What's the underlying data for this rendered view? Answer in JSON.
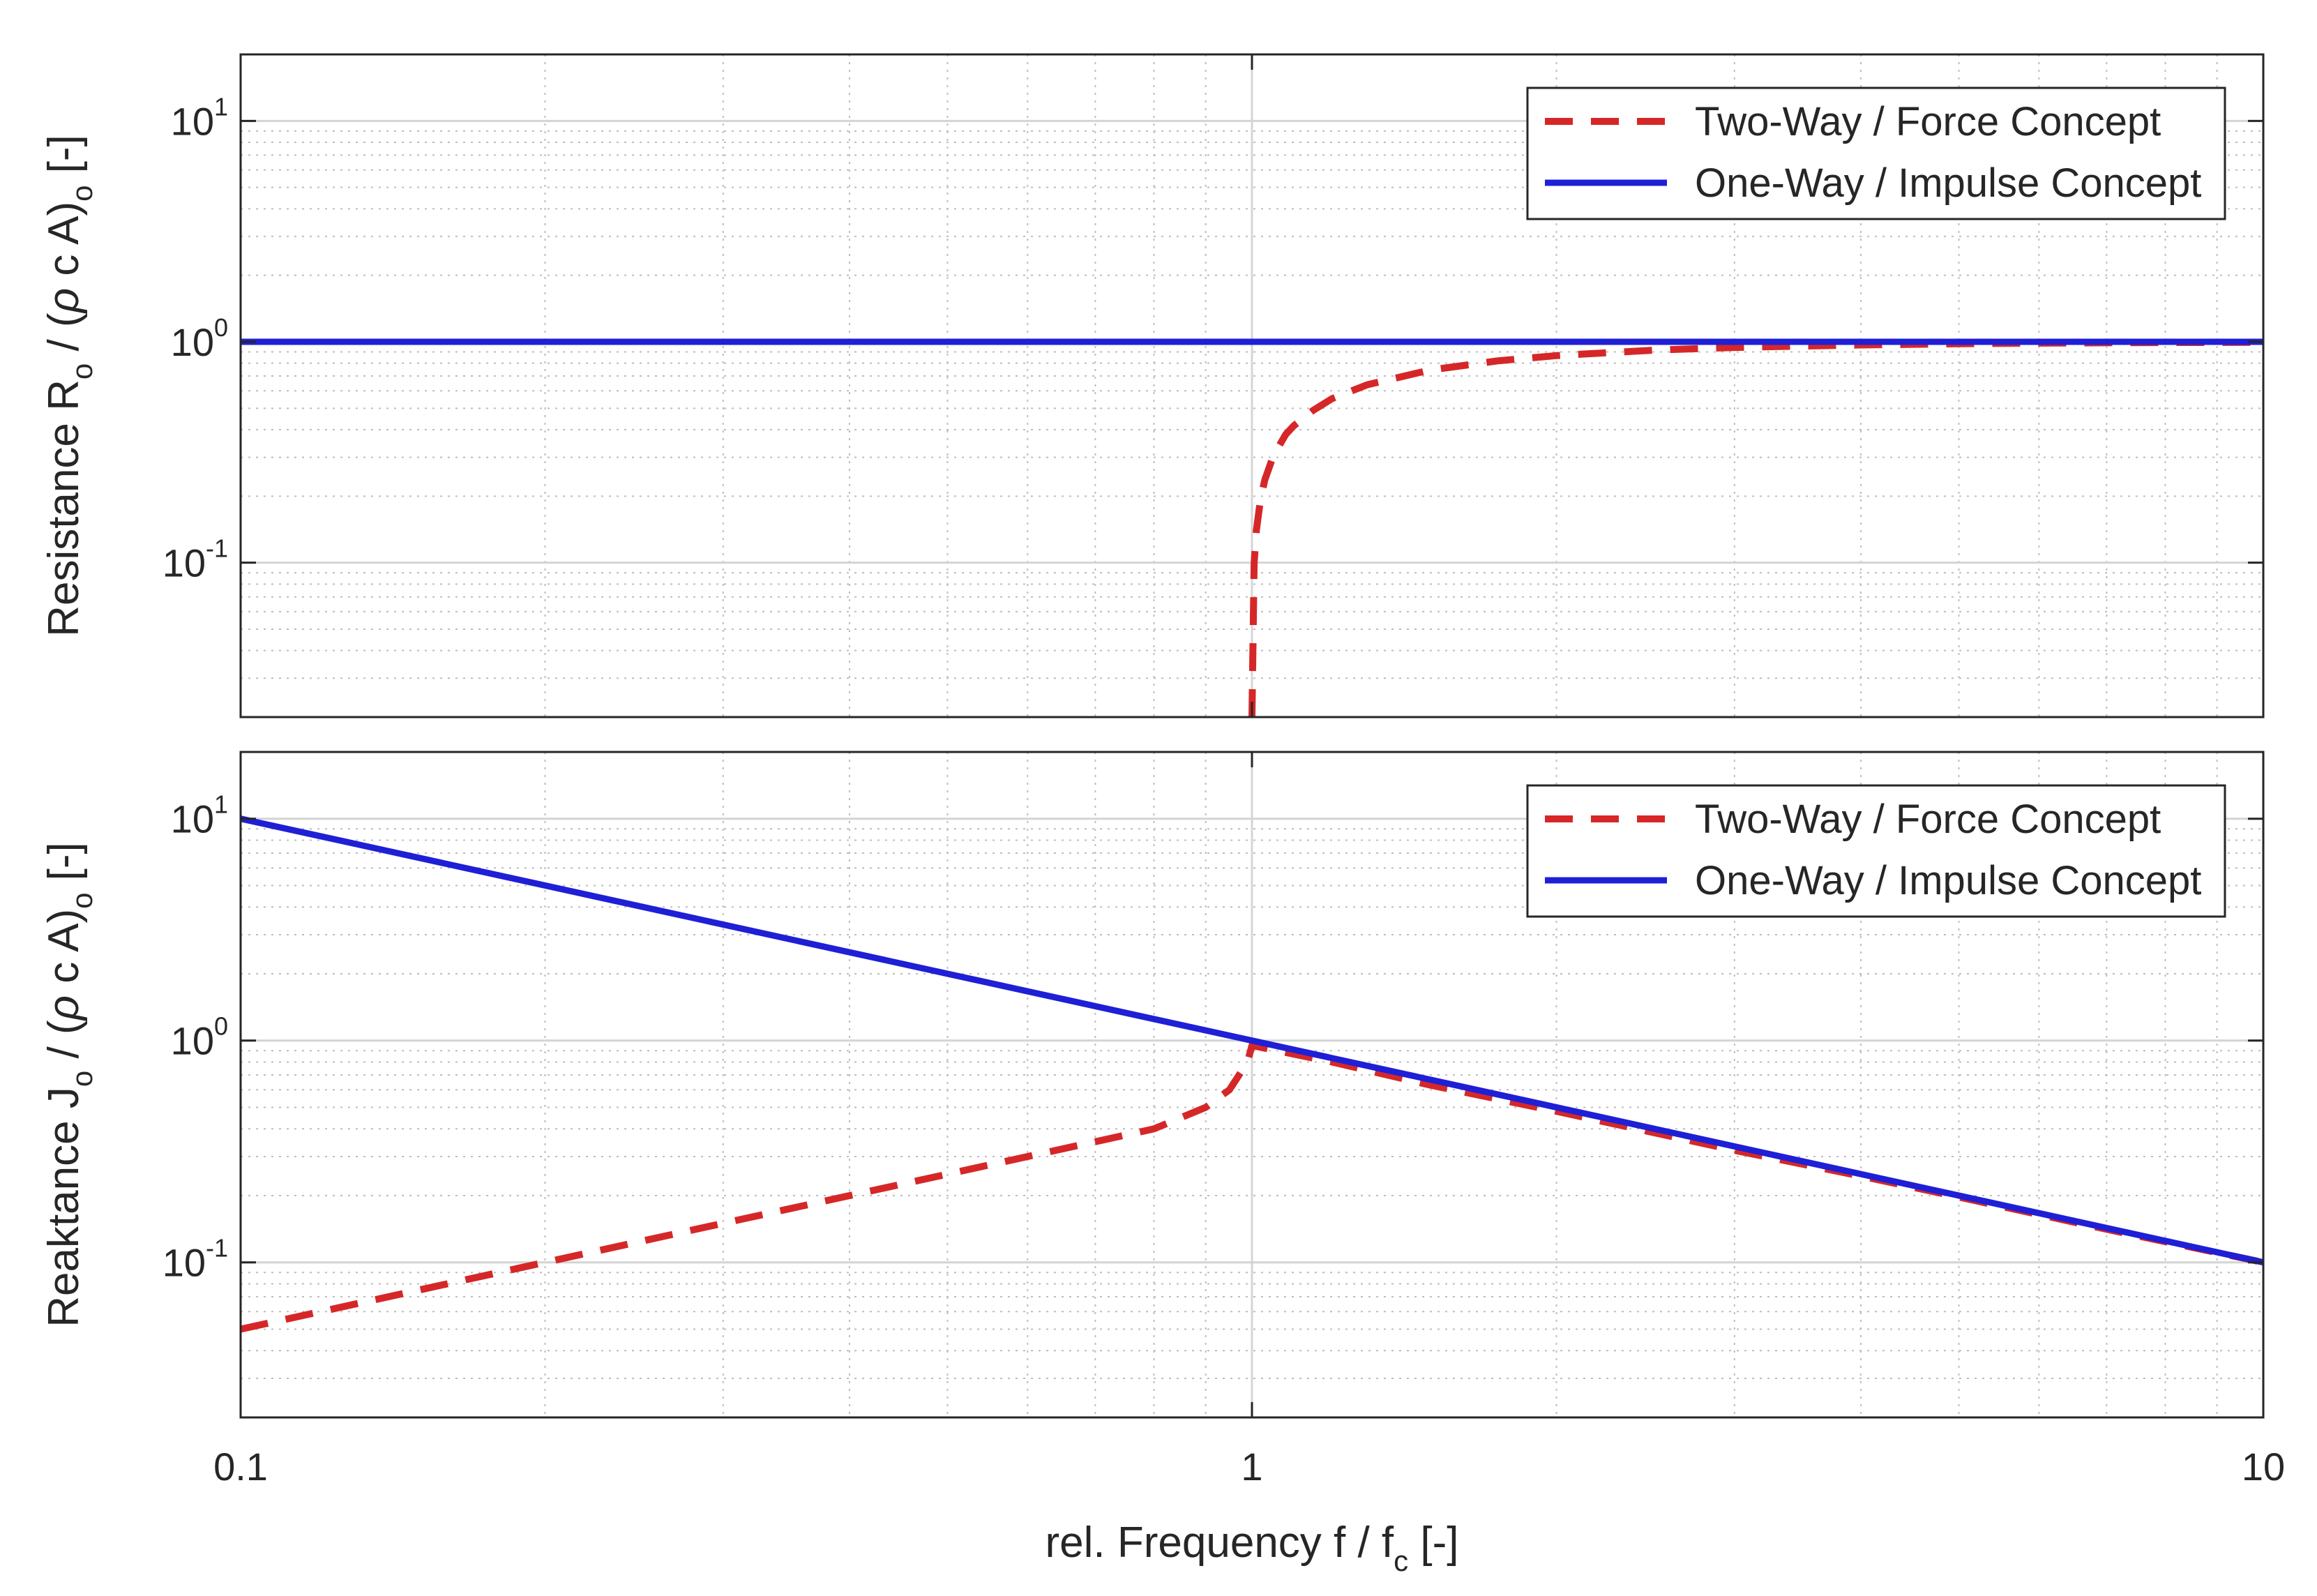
{
  "chart_data": [
    {
      "type": "line",
      "xscale": "log",
      "yscale": "log",
      "xlim": [
        0.1,
        10
      ],
      "ylim": [
        0.02,
        20
      ],
      "ylabel": {
        "main": "Resistance R",
        "sub": "o",
        "mid": " / (",
        "rho": "ρ",
        "rest": " c A)",
        "sub2": "o",
        "unit": "  [-]"
      },
      "yticks": [
        {
          "base": "10",
          "exp": "-1",
          "value": 0.1
        },
        {
          "base": "10",
          "exp": "0",
          "value": 1
        },
        {
          "base": "10",
          "exp": "1",
          "value": 10
        }
      ],
      "grid": true,
      "legend_position": "top-right",
      "series": [
        {
          "name": "Two-Way / Force Concept",
          "color": "#d62728",
          "style": "dashed",
          "x": [
            1.0,
            1.005,
            1.01,
            1.02,
            1.03,
            1.05,
            1.08,
            1.1,
            1.15,
            1.2,
            1.3,
            1.5,
            1.75,
            2,
            2.5,
            3,
            4,
            5,
            6,
            7,
            8,
            10
          ],
          "y": [
            0.02,
            0.099,
            0.14,
            0.196,
            0.238,
            0.305,
            0.381,
            0.417,
            0.49,
            0.553,
            0.639,
            0.745,
            0.82,
            0.866,
            0.917,
            0.943,
            0.968,
            0.98,
            0.986,
            0.99,
            0.992,
            0.995
          ]
        },
        {
          "name": "One-Way / Impulse Concept",
          "color": "#1f1fd6",
          "style": "solid",
          "x": [
            0.1,
            10
          ],
          "y": [
            1.0,
            1.0
          ]
        }
      ]
    },
    {
      "type": "line",
      "xscale": "log",
      "yscale": "log",
      "xlim": [
        0.1,
        10
      ],
      "ylim": [
        0.02,
        20
      ],
      "xlabel": {
        "main": "rel. Frequency f / f",
        "sub": "c",
        "unit": "    [-]"
      },
      "xticks": [
        {
          "label": "0.1",
          "value": 0.1
        },
        {
          "label": "1",
          "value": 1
        },
        {
          "label": "10",
          "value": 10
        }
      ],
      "ylabel": {
        "main": "Reaktance J",
        "sub": "o",
        "mid": " / (",
        "rho": "ρ",
        "rest": " c A)",
        "sub2": "o",
        "unit": "  [-]"
      },
      "yticks": [
        {
          "base": "10",
          "exp": "-1",
          "value": 0.1
        },
        {
          "base": "10",
          "exp": "0",
          "value": 1
        },
        {
          "base": "10",
          "exp": "1",
          "value": 10
        }
      ],
      "grid": true,
      "legend_position": "top-right",
      "series": [
        {
          "name": "Two-Way / Force Concept",
          "color": "#d62728",
          "style": "dashed",
          "x": [
            0.1,
            0.15,
            0.2,
            0.3,
            0.4,
            0.5,
            0.6,
            0.7,
            0.8,
            0.9,
            0.95,
            0.99,
            1.0,
            1.2,
            1.5,
            2,
            3,
            4,
            5,
            7,
            10
          ],
          "y": [
            0.05,
            0.075,
            0.1,
            0.15,
            0.2,
            0.25,
            0.3,
            0.35,
            0.4,
            0.5,
            0.6,
            0.8,
            0.95,
            0.8,
            0.63,
            0.48,
            0.32,
            0.245,
            0.197,
            0.141,
            0.1
          ]
        },
        {
          "name": "One-Way / Impulse Concept",
          "color": "#1f1fd6",
          "style": "solid",
          "x": [
            0.1,
            10
          ],
          "y": [
            10,
            0.1
          ]
        }
      ]
    }
  ]
}
